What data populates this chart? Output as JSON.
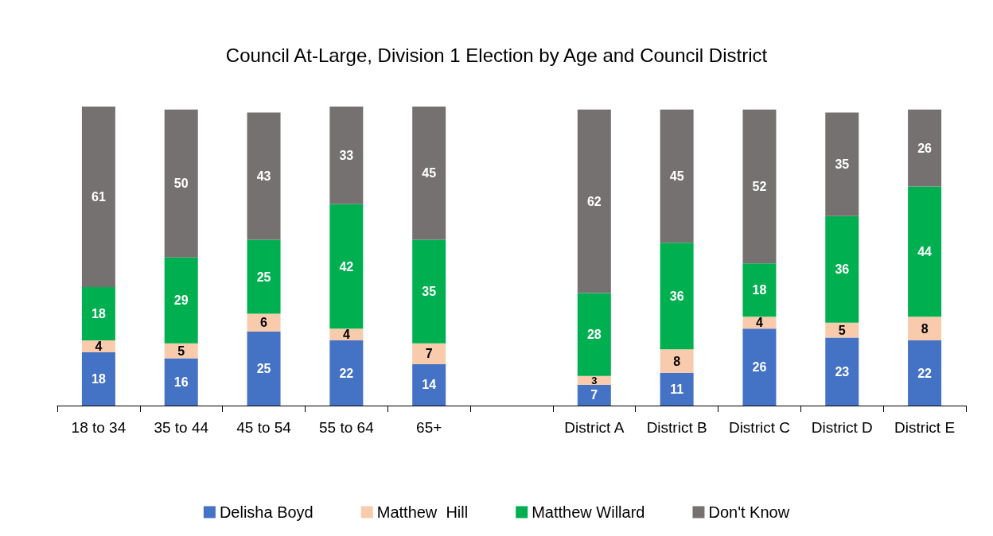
{
  "chart_data": {
    "type": "bar",
    "title": "Council At-Large, Division 1 Election by Age and Council District",
    "stacked": true,
    "data_labels": true,
    "legend": "bottom",
    "categories": [
      "18 to 34",
      "35 to 44",
      "45 to 54",
      "55 to 64",
      "65+",
      null,
      "District A",
      "District B",
      "District C",
      "District D",
      "District E"
    ],
    "series": [
      {
        "name": "Delisha Boyd",
        "color": "#4472c4",
        "values": [
          18,
          16,
          25,
          22,
          14,
          null,
          7,
          11,
          26,
          23,
          22
        ]
      },
      {
        "name": "Matthew  Hill",
        "color": "#f8cbad",
        "values": [
          4,
          5,
          6,
          4,
          7,
          null,
          3,
          8,
          4,
          5,
          8
        ]
      },
      {
        "name": "Matthew Willard",
        "color": "#00b050",
        "values": [
          18,
          29,
          25,
          42,
          35,
          null,
          28,
          36,
          18,
          36,
          44
        ]
      },
      {
        "name": "Don't Know",
        "color": "#767171",
        "values": [
          61,
          50,
          43,
          33,
          45,
          null,
          62,
          45,
          52,
          35,
          26
        ]
      }
    ]
  }
}
